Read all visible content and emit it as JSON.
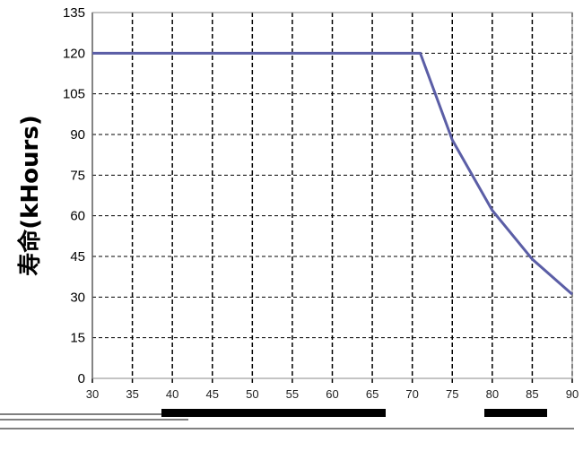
{
  "chart_data": {
    "type": "line",
    "title": "",
    "xlabel": "",
    "ylabel": "寿命(kHours)",
    "x": [
      30,
      35,
      40,
      45,
      50,
      55,
      60,
      65,
      70,
      71,
      75,
      80,
      85,
      90
    ],
    "series": [
      {
        "values": [
          120,
          120,
          120,
          120,
          120,
          120,
          120,
          120,
          120,
          120,
          88,
          62,
          44,
          31
        ],
        "color": "#5b5ea6"
      }
    ],
    "xlim": [
      30,
      90
    ],
    "ylim": [
      0,
      135
    ],
    "yticks": [
      0,
      15,
      30,
      45,
      60,
      75,
      90,
      105,
      120,
      135
    ],
    "xticks": [
      30,
      35,
      40,
      45,
      50,
      55,
      60,
      65,
      70,
      75,
      80,
      85,
      90
    ],
    "grid": {
      "horizontal": "dashed",
      "vertical": "dashed"
    },
    "colors": {
      "line": "#5b5ea6",
      "grid": "#000000",
      "axis": "#000000"
    }
  }
}
